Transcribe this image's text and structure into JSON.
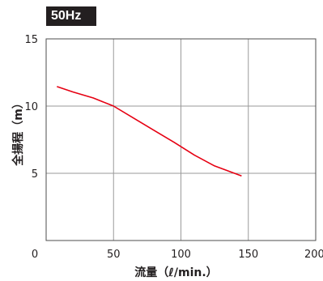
{
  "badge": "50Hz",
  "chart_data": {
    "type": "line",
    "title": "",
    "xlabel": "流量（ℓ/min.）",
    "ylabel": "全揚程（m）",
    "xlim": [
      0,
      200
    ],
    "ylim": [
      0,
      15
    ],
    "x_ticks": [
      "0",
      "50",
      "100",
      "150",
      "200"
    ],
    "y_ticks": [
      "5",
      "10",
      "15"
    ],
    "grid": true,
    "legend": "none",
    "series": [
      {
        "color": "#e60012",
        "x": [
          8,
          20,
          35,
          50,
          65,
          80,
          95,
          110,
          125,
          145
        ],
        "y": [
          11.45,
          11.05,
          10.6,
          10.0,
          9.1,
          8.2,
          7.3,
          6.35,
          5.55,
          4.8
        ]
      }
    ]
  }
}
